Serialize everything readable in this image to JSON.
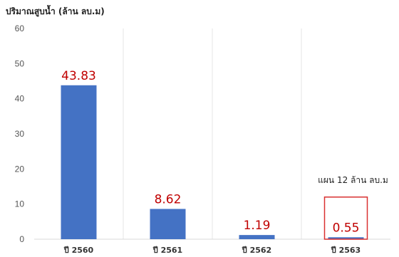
{
  "chart_data": {
    "type": "bar",
    "ylabel": "ปริมาณสูบน้ำ (ล้าน ลบ.ม)",
    "categories": [
      "ปี 2560",
      "ปี 2561",
      "ปี 2562",
      "ปี 2563"
    ],
    "values": [
      43.83,
      8.62,
      1.19,
      0.55
    ],
    "data_labels": [
      "43.83",
      "8.62",
      "1.19",
      "0.55"
    ],
    "ylim": [
      0,
      60
    ],
    "yticks": [
      0,
      10,
      20,
      30,
      40,
      50,
      60
    ],
    "grid": "vertical",
    "bar_color": "#4472c4",
    "label_color": "#c00000",
    "highlight_color": "#d93030",
    "annotation": {
      "text": "แผน 12 ล้าน ลบ.ม",
      "category": "ปี 2563",
      "plan_value": 12
    }
  }
}
